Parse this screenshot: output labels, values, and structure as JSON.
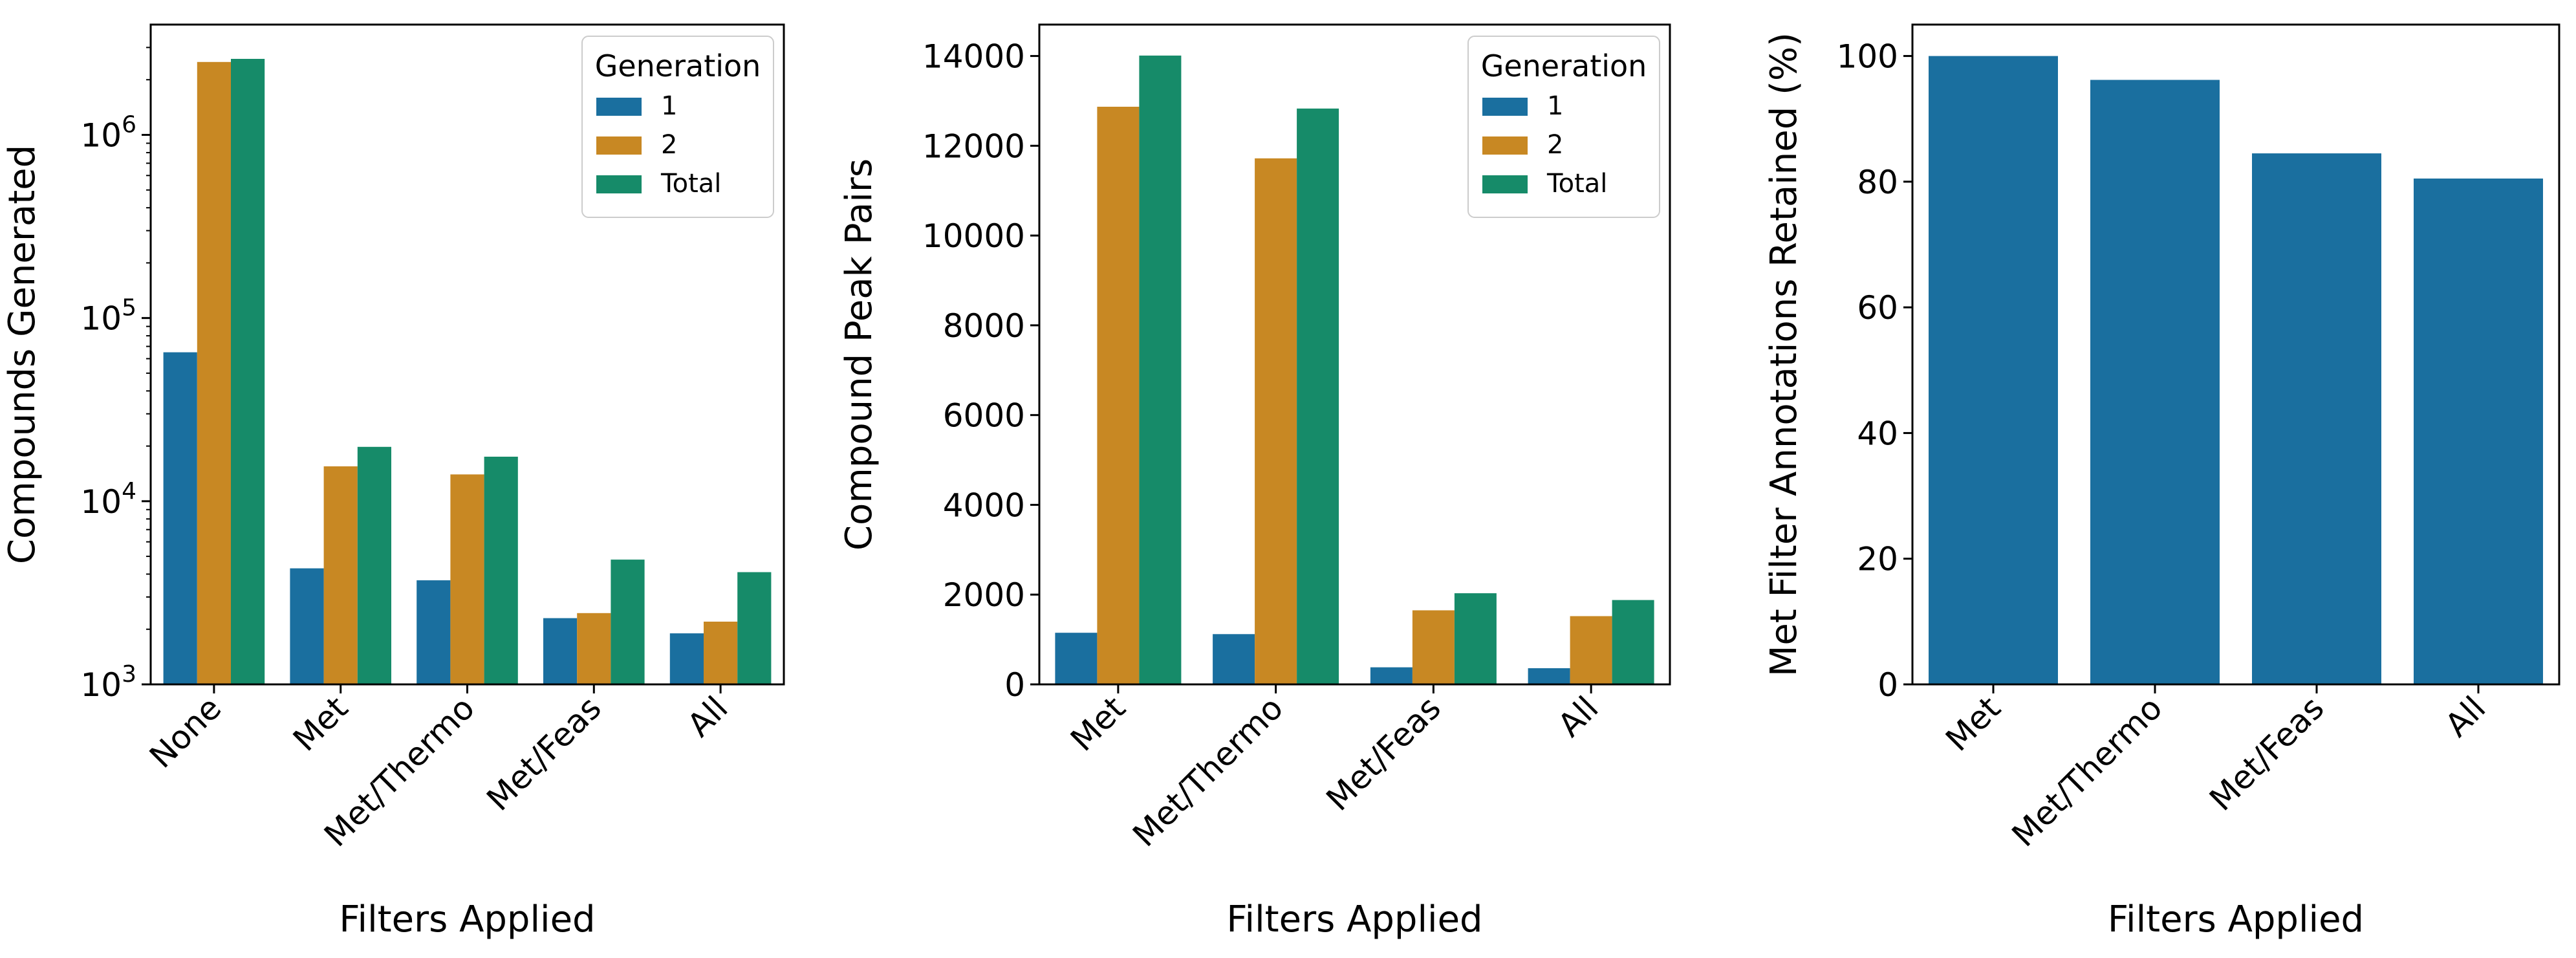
{
  "colors": {
    "gen1": "#1a6f9f",
    "gen2": "#c88823",
    "total": "#168b69"
  },
  "chart_data": [
    {
      "type": "bar",
      "log_scale": true,
      "categories": [
        "None",
        "Met",
        "Met/Thermo",
        "Met/Feas",
        "All"
      ],
      "series": [
        {
          "name": "1",
          "values": [
            65000,
            4300,
            3700,
            2300,
            1900
          ]
        },
        {
          "name": "2",
          "values": [
            2500000,
            15500,
            14000,
            2450,
            2200
          ]
        },
        {
          "name": "Total",
          "values": [
            2600000,
            19800,
            17500,
            4800,
            4100
          ]
        }
      ],
      "ylim": [
        1000,
        4000000
      ],
      "yticks": [
        {
          "value": 1000,
          "base": "10",
          "exp": "3"
        },
        {
          "value": 10000,
          "base": "10",
          "exp": "4"
        },
        {
          "value": 100000,
          "base": "10",
          "exp": "5"
        },
        {
          "value": 1000000,
          "base": "10",
          "exp": "6"
        }
      ],
      "xlabel": "Filters Applied",
      "ylabel": "Compounds Generated",
      "legend": {
        "title": "Generation",
        "placement": "top-right"
      },
      "grid": false
    },
    {
      "type": "bar",
      "categories": [
        "Met",
        "Met/Thermo",
        "Met/Feas",
        "All"
      ],
      "series": [
        {
          "name": "1",
          "values": [
            1150,
            1120,
            380,
            360
          ]
        },
        {
          "name": "2",
          "values": [
            12870,
            11720,
            1650,
            1520
          ]
        },
        {
          "name": "Total",
          "values": [
            14010,
            12830,
            2030,
            1880
          ]
        }
      ],
      "ylim": [
        0,
        14700
      ],
      "yticks": [
        0,
        2000,
        4000,
        6000,
        8000,
        10000,
        12000,
        14000
      ],
      "xlabel": "Filters Applied",
      "ylabel": "Compound Peak Pairs",
      "legend": {
        "title": "Generation",
        "placement": "top-right"
      },
      "grid": false
    },
    {
      "type": "bar",
      "categories": [
        "Met",
        "Met/Thermo",
        "Met/Feas",
        "All"
      ],
      "series": [
        {
          "values": [
            100,
            96.2,
            84.5,
            80.5
          ]
        }
      ],
      "ylim": [
        0,
        105
      ],
      "yticks": [
        0,
        20,
        40,
        60,
        80,
        100
      ],
      "xlabel": "Filters Applied",
      "ylabel": "Met Filter Annotations Retained (%)",
      "grid": false
    }
  ]
}
